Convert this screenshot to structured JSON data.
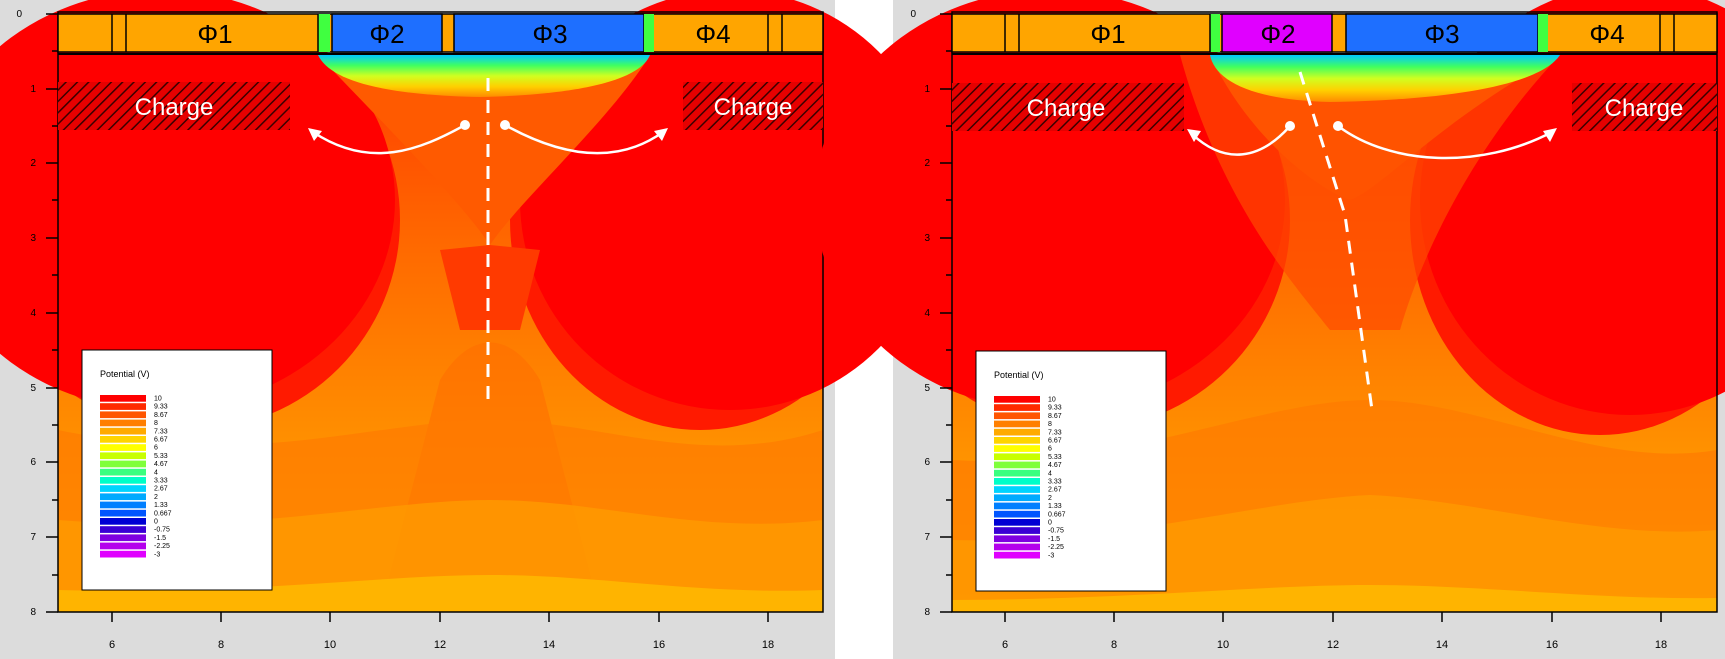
{
  "colors": {
    "background": "#dcdcdc",
    "electrode": "#ffa500",
    "phi3_fill": "#1e6fff",
    "phi2_left_fill": "#1e6fff",
    "phi2_right_fill": "#e000ff",
    "charge_fill": "#e60000",
    "arrow": "#ffffff"
  },
  "panels": [
    {
      "id": "left",
      "electrodes": [
        "Φ1",
        "Φ2",
        "Φ3",
        "Φ4"
      ],
      "charge_left": "Charge",
      "charge_right": "Charge",
      "legend": {
        "title": "Potential (V)",
        "levels": [
          "10",
          "9.33",
          "8.67",
          "8",
          "7.33",
          "6.67",
          "6",
          "5.33",
          "4.67",
          "4",
          "3.33",
          "2.67",
          "2",
          "1.33",
          "0.667",
          "0",
          "-0.75",
          "-1.5",
          "-2.25",
          "-3"
        ]
      },
      "x_ticks": [
        "6",
        "8",
        "10",
        "12",
        "14",
        "16",
        "18"
      ],
      "y_ticks": [
        "0",
        "1",
        "2",
        "3",
        "4",
        "5",
        "6",
        "7",
        "8"
      ]
    },
    {
      "id": "right",
      "electrodes": [
        "Φ1",
        "Φ2",
        "Φ3",
        "Φ4"
      ],
      "charge_left": "Charge",
      "charge_right": "Charge",
      "legend": {
        "title": "Potential (V)",
        "levels": [
          "10",
          "9.33",
          "8.67",
          "8",
          "7.33",
          "6.67",
          "6",
          "5.33",
          "4.67",
          "4",
          "3.33",
          "2.67",
          "2",
          "1.33",
          "0.667",
          "0",
          "-0.75",
          "-1.5",
          "-2.25",
          "-3"
        ]
      },
      "x_ticks": [
        "6",
        "8",
        "10",
        "12",
        "14",
        "16",
        "18"
      ],
      "y_ticks": [
        "0",
        "1",
        "2",
        "3",
        "4",
        "5",
        "6",
        "7",
        "8"
      ]
    }
  ]
}
